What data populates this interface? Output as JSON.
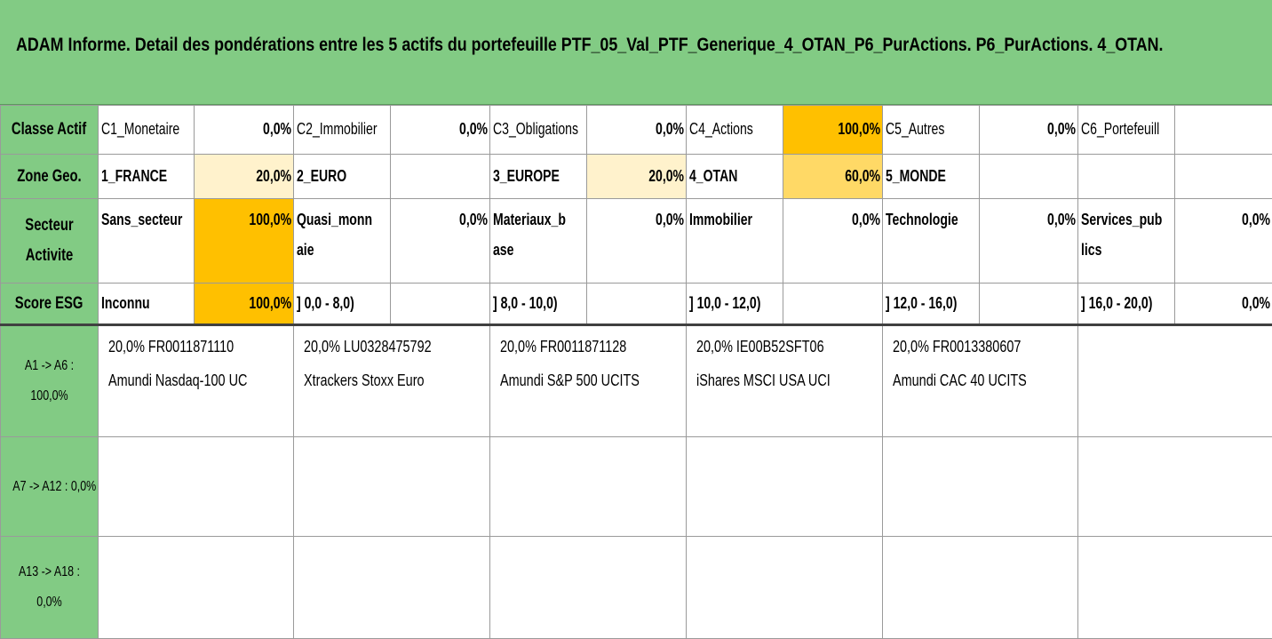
{
  "title": "ADAM Informe. Detail des pondérations entre les 5 actifs du portefeuille PTF_05_Val_PTF_Generique_4_OTAN_P6_PurActions. P6_PurActions. 4_OTAN.",
  "rows": {
    "classe": {
      "header": "Classe Actif",
      "cells": [
        {
          "label": "C1_Monetaire",
          "value": "0,0%"
        },
        {
          "label": "C2_Immobilier",
          "value": "0,0%"
        },
        {
          "label": "C3_Obligations",
          "value": "0,0%"
        },
        {
          "label": "C4_Actions",
          "value": "100,0%"
        },
        {
          "label": "C5_Autres",
          "value": "0,0%"
        },
        {
          "label": "C6_Portefeuill",
          "value": ""
        }
      ]
    },
    "zone": {
      "header": "Zone Geo.",
      "cells": [
        {
          "label": "1_FRANCE",
          "value": "20,0%"
        },
        {
          "label": "2_EURO",
          "value": ""
        },
        {
          "label": "3_EUROPE",
          "value": "20,0%"
        },
        {
          "label": "4_OTAN",
          "value": "60,0%"
        },
        {
          "label": "5_MONDE",
          "value": ""
        },
        {
          "label": "",
          "value": ""
        }
      ]
    },
    "secteur": {
      "header_line1": "Secteur",
      "header_line2": "Activite",
      "cells": [
        {
          "label1": "Sans_secteur",
          "label2": "",
          "value": "100,0%"
        },
        {
          "label1": "Quasi_monn",
          "label2": "aie",
          "value": "0,0%"
        },
        {
          "label1": "Materiaux_b",
          "label2": "ase",
          "value": "0,0%"
        },
        {
          "label1": "Immobilier",
          "label2": "",
          "value": "0,0%"
        },
        {
          "label1": "Technologie",
          "label2": "",
          "value": "0,0%"
        },
        {
          "label1": "Services_pub",
          "label2": "lics",
          "value": "0,0%"
        }
      ]
    },
    "esg": {
      "header": "Score ESG",
      "cells": [
        {
          "label": "Inconnu",
          "value": "100,0%"
        },
        {
          "label": "] 0,0 - 8,0)",
          "value": ""
        },
        {
          "label": "] 8,0 - 10,0)",
          "value": ""
        },
        {
          "label": "] 10,0 - 12,0)",
          "value": ""
        },
        {
          "label": "] 12,0 - 16,0)",
          "value": ""
        },
        {
          "label": "] 16,0 - 20,0)",
          "value": "0,0%"
        }
      ]
    }
  },
  "asset_groups": [
    {
      "header_line1": "A1 -> A6 :",
      "header_line2": "100,0%",
      "assets": [
        {
          "line1": "20,0% FR0011871110",
          "line2": "Amundi Nasdaq-100 UC"
        },
        {
          "line1": "20,0% LU0328475792",
          "line2": "Xtrackers Stoxx Euro"
        },
        {
          "line1": "20,0% FR0011871128",
          "line2": "Amundi S&P 500 UCITS"
        },
        {
          "line1": "20,0% IE00B52SFT06",
          "line2": "iShares MSCI USA UCI"
        },
        {
          "line1": "20,0% FR0013380607",
          "line2": "Amundi CAC 40 UCITS"
        },
        {
          "line1": "",
          "line2": ""
        }
      ]
    },
    {
      "header_line1": "A7 -> A12 : 0,0%",
      "header_line2": "",
      "assets": []
    },
    {
      "header_line1": "A13 -> A18 :",
      "header_line2": "0,0%",
      "assets": []
    }
  ],
  "colors": {
    "green": "#82cb84",
    "light_yellow": "#fff2cc",
    "mid_yellow": "#ffd966",
    "orange": "#ffc000"
  }
}
